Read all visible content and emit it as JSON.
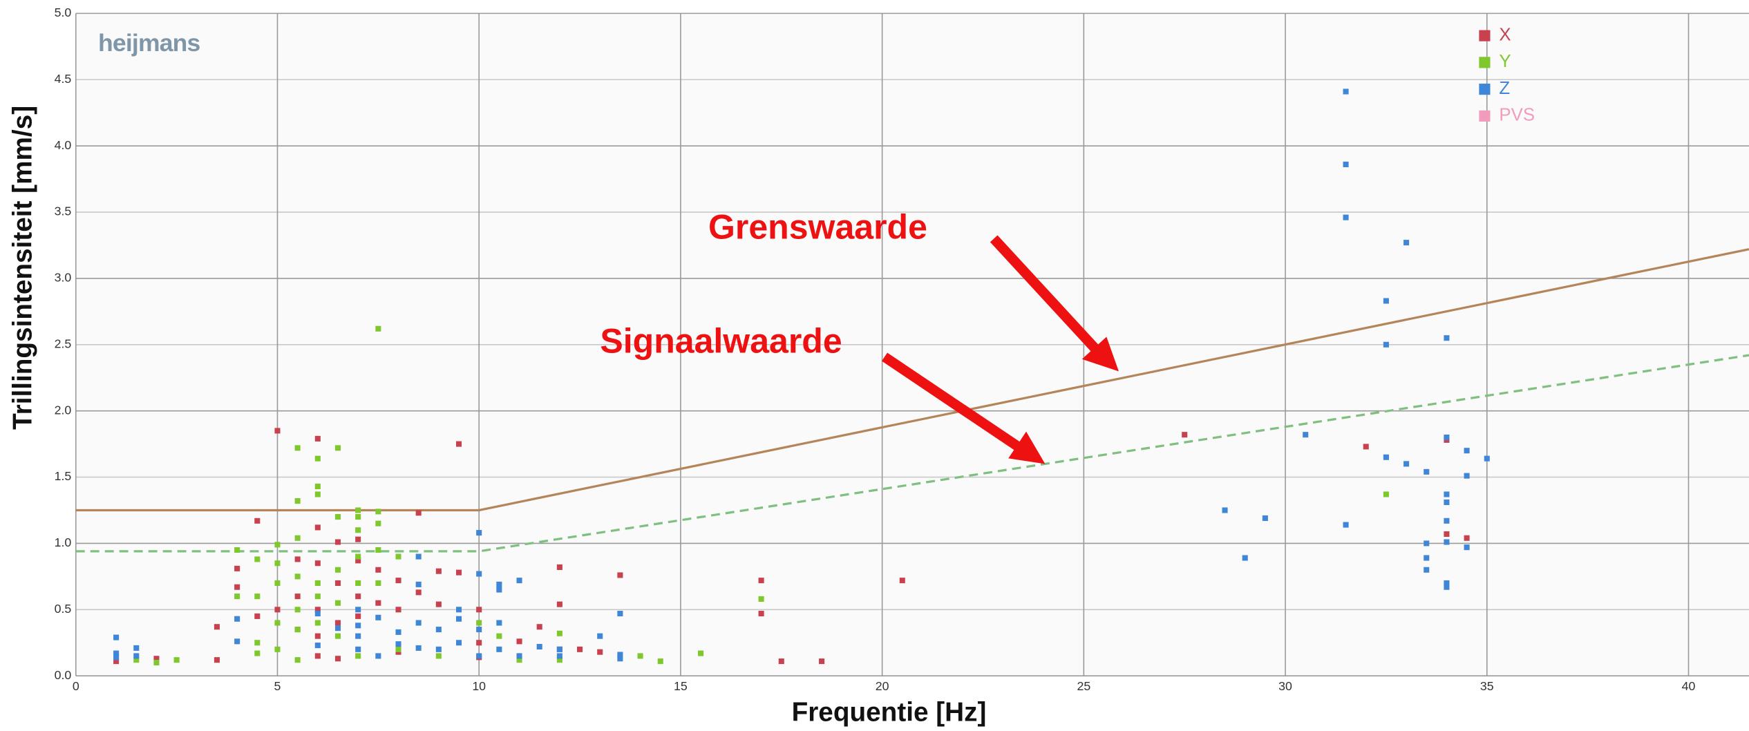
{
  "chart_data": {
    "type": "scatter",
    "logo": "heijmans",
    "x_label": "Frequentie [Hz]",
    "y_label": "Trillingsintensiteit [mm/s]",
    "xlim": [
      0,
      41.5
    ],
    "ylim": [
      0,
      5
    ],
    "xticks": [
      0,
      5,
      10,
      15,
      20,
      25,
      30,
      35,
      40
    ],
    "yticks": [
      {
        "value": 0,
        "label": "0.0"
      },
      {
        "value": 0.5,
        "label": "0.5"
      },
      {
        "value": 1,
        "label": "1.0"
      },
      {
        "value": 1.5,
        "label": "1.5"
      },
      {
        "value": 2,
        "label": "2.0"
      },
      {
        "value": 2.5,
        "label": "2.5"
      },
      {
        "value": 3,
        "label": "3.0"
      },
      {
        "value": 3.5,
        "label": "3.5"
      },
      {
        "value": 4,
        "label": "4.0"
      },
      {
        "value": 4.5,
        "label": "4.5"
      },
      {
        "value": 5,
        "label": "5.0"
      }
    ],
    "grid": true,
    "legend": "top-right",
    "series": [
      {
        "name": "X",
        "color": "#c8414f",
        "x": [
          5,
          6,
          9.5,
          27.5,
          32,
          34,
          34,
          34.5,
          8.5,
          4.5,
          6,
          7,
          6.5,
          20.5,
          17,
          17,
          13.5,
          12,
          12,
          4,
          4,
          4.5,
          5,
          5.5,
          5.5,
          6,
          6,
          6,
          6,
          6.5,
          6.5,
          7,
          7,
          7,
          7.5,
          7.5,
          8,
          8,
          8.5,
          9,
          9,
          9.5,
          10,
          10,
          11,
          11.5,
          12,
          12.5,
          13,
          10,
          3.5,
          3.5,
          2,
          1,
          17.5,
          18.5,
          5.5,
          6.5,
          8
        ],
        "values": [
          1.85,
          1.79,
          1.75,
          1.82,
          1.73,
          1.78,
          1.07,
          1.04,
          1.23,
          1.17,
          1.12,
          1.03,
          1.01,
          0.72,
          0.72,
          0.47,
          0.76,
          0.82,
          0.54,
          0.81,
          0.67,
          0.45,
          0.5,
          0.88,
          0.6,
          0.85,
          0.5,
          0.3,
          0.15,
          0.7,
          0.4,
          0.87,
          0.6,
          0.45,
          0.8,
          0.55,
          0.72,
          0.5,
          0.63,
          0.79,
          0.54,
          0.78,
          0.5,
          0.25,
          0.26,
          0.37,
          0.2,
          0.2,
          0.18,
          0.14,
          0.37,
          0.12,
          0.13,
          0.11,
          0.11,
          0.11,
          0.35,
          0.13,
          0.18
        ]
      },
      {
        "name": "Y",
        "color": "#7ec82d",
        "x": [
          7.5,
          5.5,
          6.5,
          6,
          6,
          6,
          5.5,
          7,
          7,
          7.5,
          6.5,
          7,
          7.5,
          5.5,
          4,
          5,
          4.5,
          5,
          5.5,
          5,
          6,
          6.5,
          7,
          7.5,
          8,
          5.5,
          5.5,
          6,
          6,
          6.5,
          6.5,
          7,
          7.5,
          5,
          5,
          4,
          4.5,
          4.5,
          4.5,
          5.5,
          7,
          8,
          10,
          10.5,
          11,
          12,
          12,
          14,
          14.5,
          15.5,
          17,
          32.5,
          2.5,
          1.5,
          2,
          9
        ],
        "values": [
          2.62,
          1.72,
          1.72,
          1.64,
          1.43,
          1.37,
          1.32,
          1.25,
          1.2,
          1.24,
          1.2,
          1.1,
          1.15,
          1.04,
          0.95,
          0.99,
          0.88,
          0.85,
          0.75,
          0.7,
          0.7,
          0.8,
          0.9,
          0.95,
          0.9,
          0.5,
          0.35,
          0.6,
          0.4,
          0.55,
          0.3,
          0.7,
          0.7,
          0.4,
          0.2,
          0.6,
          0.6,
          0.25,
          0.17,
          0.12,
          0.15,
          0.2,
          0.4,
          0.3,
          0.12,
          0.32,
          0.12,
          0.15,
          0.11,
          0.17,
          0.58,
          1.37,
          0.12,
          0.12,
          0.1,
          0.15
        ]
      },
      {
        "name": "Z",
        "color": "#3f87d6",
        "x": [
          31.5,
          31.5,
          31.5,
          33,
          32.5,
          32.5,
          34,
          34,
          34.5,
          35,
          32.5,
          33,
          33.5,
          34.5,
          30.5,
          28.5,
          29.5,
          29,
          31.5,
          34,
          34,
          34,
          34,
          33.5,
          33.5,
          33.5,
          34,
          34,
          34.5,
          10,
          10,
          10.5,
          11,
          10.5,
          13.5,
          13,
          12,
          11.5,
          1,
          1,
          1,
          1.5,
          1.5,
          4,
          4,
          6,
          6,
          6.5,
          7,
          7,
          7,
          7,
          7.5,
          7.5,
          8,
          8,
          8.5,
          8.5,
          8.5,
          8.5,
          9,
          9,
          9.5,
          9.5,
          9.5,
          10,
          10,
          10.5,
          10.5,
          11,
          12,
          13.5,
          13.5
        ],
        "values": [
          4.41,
          3.86,
          3.46,
          3.27,
          2.83,
          2.5,
          2.55,
          1.8,
          1.7,
          1.64,
          1.65,
          1.6,
          1.54,
          1.51,
          1.82,
          1.25,
          1.19,
          0.89,
          1.14,
          1.37,
          1.31,
          1.17,
          1.01,
          1.0,
          0.89,
          0.8,
          0.7,
          0.67,
          0.97,
          1.08,
          0.77,
          0.69,
          0.72,
          0.65,
          0.47,
          0.3,
          0.2,
          0.22,
          0.29,
          0.17,
          0.14,
          0.21,
          0.15,
          0.43,
          0.26,
          0.47,
          0.23,
          0.36,
          0.5,
          0.38,
          0.3,
          0.2,
          0.44,
          0.15,
          0.33,
          0.24,
          0.9,
          0.69,
          0.4,
          0.21,
          0.35,
          0.2,
          0.5,
          0.43,
          0.25,
          0.35,
          0.15,
          0.4,
          0.2,
          0.15,
          0.15,
          0.13,
          0.16
        ]
      },
      {
        "name": "PVS",
        "color": "#f29bbd",
        "x": [],
        "values": []
      }
    ],
    "reference_lines": [
      {
        "label": "Grenswaarde",
        "color": "#b5855a",
        "dash": false,
        "x": [
          0,
          10,
          41.5
        ],
        "values": [
          1.25,
          1.25,
          3.22
        ]
      },
      {
        "label": "Signaalwaarde",
        "color": "#7fbf7f",
        "dash": true,
        "x": [
          0,
          10,
          41.5
        ],
        "values": [
          0.94,
          0.94,
          2.42
        ]
      }
    ]
  }
}
